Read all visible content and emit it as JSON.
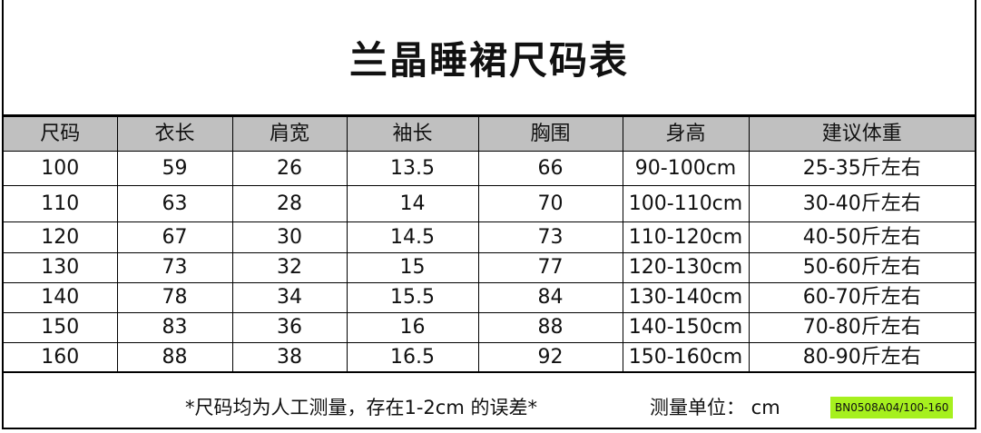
{
  "title": "兰晶睡裙尺码表",
  "headers": [
    "尺码",
    "衣长",
    "肩宽",
    "袖长",
    "胸围",
    "身高",
    "建议体重"
  ],
  "rows": [
    [
      "100",
      "59",
      "26",
      "13.5",
      "66",
      "90-100cm",
      "25-35斤左右"
    ],
    [
      "110",
      "63",
      "28",
      "14",
      "70",
      "100-110cm",
      "30-40斤左右"
    ],
    [
      "120",
      "67",
      "30",
      "14.5",
      "73",
      "110-120cm",
      "40-50斤左右"
    ],
    [
      "130",
      "73",
      "32",
      "15",
      "77",
      "120-130cm",
      "50-60斤左右"
    ],
    [
      "140",
      "78",
      "34",
      "15.5",
      "84",
      "130-140cm",
      "60-70斤左右"
    ],
    [
      "150",
      "83",
      "36",
      "16",
      "88",
      "140-150cm",
      "70-80斤左右"
    ],
    [
      "160",
      "88",
      "38",
      "16.5",
      "92",
      "150-160cm",
      "80-90斤左右"
    ]
  ],
  "footer": {
    "note": "*尺码均为人工测量，存在1-2cm 的误差*",
    "unit": "测量单位：  cm",
    "code": "BN0508A04/100-160"
  },
  "colors": {
    "header_bg": "#c0c0c0",
    "code_bg": "#a6f01e"
  }
}
